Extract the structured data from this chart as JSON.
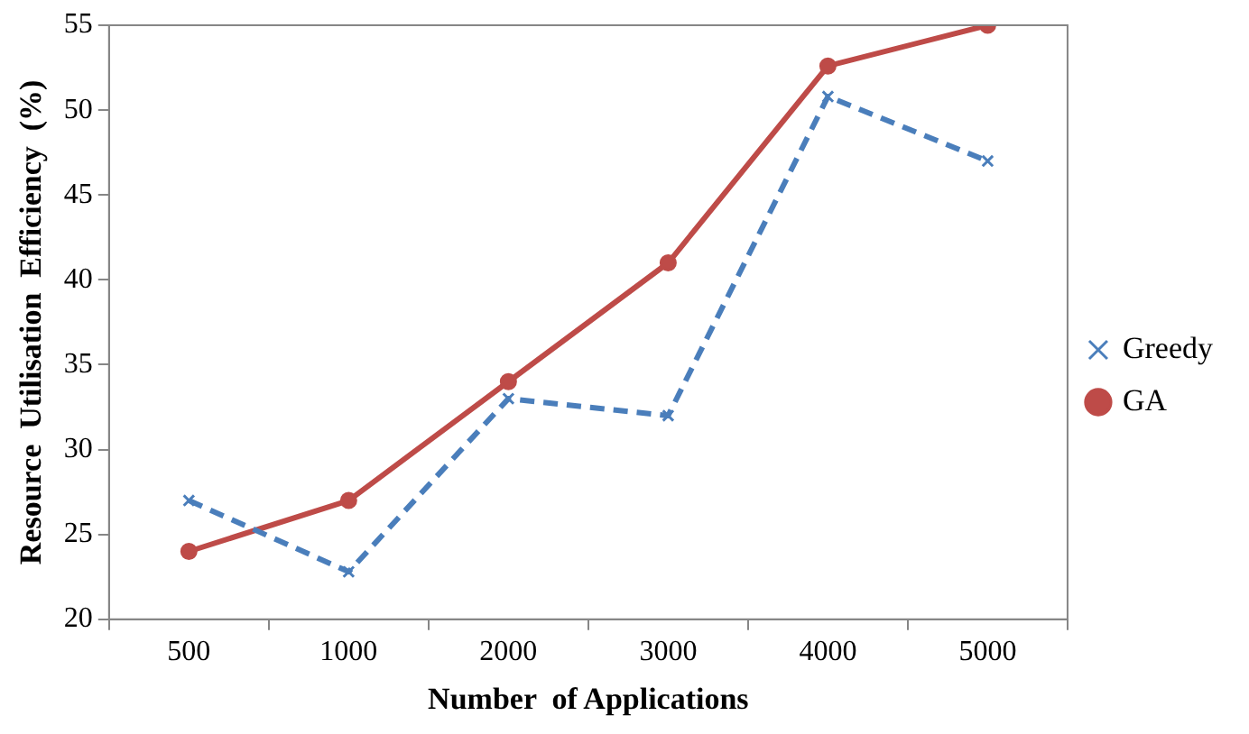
{
  "chart_data": {
    "type": "line",
    "xlabel": "Number  of Applications",
    "ylabel": "Resource  Utilisation  Efficiency  (%)",
    "categories": [
      "500",
      "1000",
      "2000",
      "3000",
      "4000",
      "5000"
    ],
    "series": [
      {
        "name": "Greedy",
        "color": "#4a7ebb",
        "marker": "cross",
        "line_style": "dashed",
        "values": [
          27,
          22.8,
          33,
          32,
          50.8,
          47
        ]
      },
      {
        "name": "GA",
        "color": "#be4b48",
        "marker": "circle",
        "line_style": "solid",
        "values": [
          24,
          27,
          34,
          41,
          52.6,
          55
        ]
      }
    ],
    "ylim": [
      20,
      55
    ],
    "yticks": [
      20,
      25,
      30,
      35,
      40,
      45,
      50,
      55
    ],
    "grid": false,
    "legend": "right"
  }
}
